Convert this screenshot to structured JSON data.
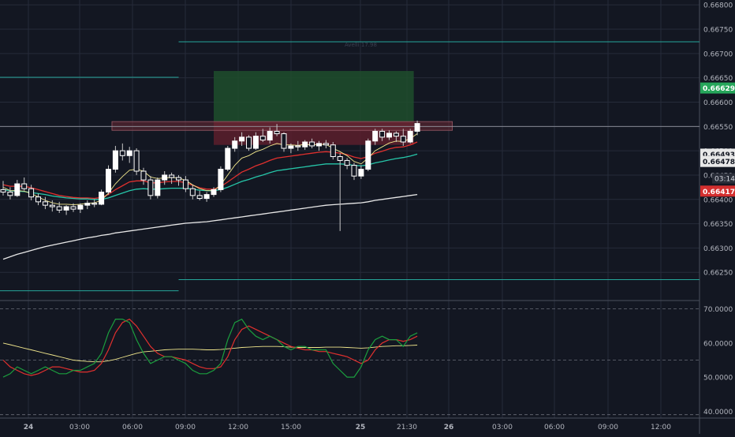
{
  "watermark": "Avelli 17.98",
  "colors": {
    "background": "#131722",
    "grid": "#262b3a",
    "candle_body": "#ffffff",
    "candle_wick": "#c8c8c8",
    "ema_fast": "#f0e68c",
    "ema_mid": "#e0302e",
    "ema_slow": "#26c6a9",
    "ema_long": "#e8e8e8",
    "level_line": "#26a69a",
    "profit_zone": "#1e4d2b",
    "loss_zone": "#5c1f2b",
    "label_green": "#26a65b",
    "label_red": "#d32f2f"
  },
  "chart_data": [
    {
      "type": "candlestick",
      "title": "",
      "x": [
        "24",
        "03:00",
        "06:00",
        "09:00",
        "12:00",
        "15:00",
        "25",
        "21:30",
        "26",
        "03:00",
        "06:00",
        "09:00",
        "12:00"
      ],
      "ylim": [
        0.66192,
        0.6681
      ],
      "y_ticks": [
        "0.66800",
        "0.66750",
        "0.66700",
        "0.66650",
        "0.66600",
        "0.66550",
        "0.66500",
        "0.66450",
        "0.66400",
        "0.66350",
        "0.66300",
        "0.66250"
      ],
      "price_labels": [
        {
          "value": 0.66629,
          "text": "0.66629",
          "kind": "green"
        },
        {
          "value": 0.66493,
          "text": "0.66493",
          "kind": "gray"
        },
        {
          "value": 0.66478,
          "text": "0.66478",
          "kind": "gray"
        },
        {
          "value": 0.66417,
          "text": "0.66417",
          "kind": "red"
        }
      ],
      "countdown": "03:14",
      "horizontal_levels": [
        {
          "value": 0.66724,
          "from": 25.0,
          "to": 200
        },
        {
          "value": 0.66651,
          "from": -6,
          "to": 25.0
        },
        {
          "value": 0.66235,
          "from": 25.0,
          "to": 200
        },
        {
          "value": 0.66212,
          "from": -6,
          "to": 25.0
        }
      ],
      "resistance_zone": {
        "from": 15.5,
        "to": 64.0,
        "high": 0.6656,
        "low": 0.66542
      },
      "position": {
        "from": 30.0,
        "to": 58.5,
        "entry": 0.6656,
        "target": 0.66664,
        "stop": 0.66512
      },
      "current_price_line": 0.6655,
      "ohlc": [
        [
          0.6642,
          0.66438,
          0.66408,
          0.66415
        ],
        [
          0.66415,
          0.66425,
          0.664,
          0.66408
        ],
        [
          0.66408,
          0.6644,
          0.66405,
          0.66432
        ],
        [
          0.66432,
          0.66445,
          0.66418,
          0.66422
        ],
        [
          0.66422,
          0.6643,
          0.66398,
          0.66405
        ],
        [
          0.66405,
          0.66412,
          0.66388,
          0.66395
        ],
        [
          0.66395,
          0.66405,
          0.6638,
          0.66388
        ],
        [
          0.66388,
          0.66398,
          0.66375,
          0.66385
        ],
        [
          0.66385,
          0.66395,
          0.66372,
          0.66378
        ],
        [
          0.66378,
          0.66388,
          0.66368,
          0.66385
        ],
        [
          0.66385,
          0.66392,
          0.66374,
          0.6638
        ],
        [
          0.6638,
          0.66392,
          0.66372,
          0.66388
        ],
        [
          0.66388,
          0.66398,
          0.6638,
          0.66392
        ],
        [
          0.66392,
          0.664,
          0.66384,
          0.6639
        ],
        [
          0.6639,
          0.6642,
          0.66388,
          0.66415
        ],
        [
          0.66415,
          0.6647,
          0.6641,
          0.66462
        ],
        [
          0.66462,
          0.6651,
          0.66455,
          0.665
        ],
        [
          0.665,
          0.66515,
          0.6648,
          0.6649
        ],
        [
          0.6649,
          0.66508,
          0.66475,
          0.665
        ],
        [
          0.665,
          0.66505,
          0.6645,
          0.66458
        ],
        [
          0.66458,
          0.66465,
          0.6643,
          0.6644
        ],
        [
          0.6644,
          0.66448,
          0.664,
          0.66408
        ],
        [
          0.66408,
          0.66445,
          0.66402,
          0.6644
        ],
        [
          0.6644,
          0.66458,
          0.6643,
          0.6645
        ],
        [
          0.6645,
          0.66455,
          0.66432,
          0.66445
        ],
        [
          0.66445,
          0.6645,
          0.66428,
          0.6644
        ],
        [
          0.6644,
          0.66448,
          0.66415,
          0.66422
        ],
        [
          0.66422,
          0.6643,
          0.664,
          0.66408
        ],
        [
          0.66408,
          0.66418,
          0.66398,
          0.66402
        ],
        [
          0.66402,
          0.66415,
          0.66395,
          0.6641
        ],
        [
          0.6641,
          0.66425,
          0.66405,
          0.6642
        ],
        [
          0.6642,
          0.66468,
          0.66415,
          0.66462
        ],
        [
          0.66462,
          0.6651,
          0.66458,
          0.66505
        ],
        [
          0.66505,
          0.66528,
          0.66498,
          0.6652
        ],
        [
          0.6652,
          0.66538,
          0.6651,
          0.66528
        ],
        [
          0.66528,
          0.66532,
          0.665,
          0.66505
        ],
        [
          0.66505,
          0.66538,
          0.66502,
          0.6653
        ],
        [
          0.6653,
          0.66545,
          0.66518,
          0.66522
        ],
        [
          0.66522,
          0.66548,
          0.66515,
          0.6654
        ],
        [
          0.6654,
          0.66555,
          0.6653,
          0.66535
        ],
        [
          0.66535,
          0.66538,
          0.66498,
          0.66505
        ],
        [
          0.66505,
          0.66515,
          0.66495,
          0.6651
        ],
        [
          0.6651,
          0.6652,
          0.665,
          0.66508
        ],
        [
          0.66508,
          0.66522,
          0.66502,
          0.66518
        ],
        [
          0.66518,
          0.66525,
          0.66505,
          0.6651
        ],
        [
          0.6651,
          0.6652,
          0.665,
          0.66515
        ],
        [
          0.66515,
          0.66522,
          0.66505,
          0.66512
        ],
        [
          0.66512,
          0.66518,
          0.66482,
          0.66488
        ],
        [
          0.66488,
          0.66495,
          0.66335,
          0.6648
        ],
        [
          0.6648,
          0.66485,
          0.66462,
          0.6647
        ],
        [
          0.6647,
          0.66475,
          0.6644,
          0.66448
        ],
        [
          0.66448,
          0.6647,
          0.66442,
          0.66462
        ],
        [
          0.66462,
          0.66525,
          0.66458,
          0.6652
        ],
        [
          0.6652,
          0.66545,
          0.66512,
          0.6654
        ],
        [
          0.6654,
          0.66545,
          0.6652,
          0.66528
        ],
        [
          0.66528,
          0.66542,
          0.66522,
          0.66536
        ],
        [
          0.66536,
          0.6654,
          0.66518,
          0.6653
        ],
        [
          0.6653,
          0.66545,
          0.6651,
          0.66518
        ],
        [
          0.66518,
          0.66545,
          0.66515,
          0.6654
        ],
        [
          0.6654,
          0.66562,
          0.66532,
          0.66556
        ]
      ],
      "ema_fast": [
        0.66425,
        0.66418,
        0.66418,
        0.66417,
        0.66412,
        0.66405,
        0.66398,
        0.66393,
        0.6639,
        0.6639,
        0.66389,
        0.6639,
        0.66392,
        0.66393,
        0.66398,
        0.66413,
        0.66432,
        0.66447,
        0.6646,
        0.66462,
        0.66458,
        0.66446,
        0.66443,
        0.66444,
        0.66445,
        0.66444,
        0.66439,
        0.6643,
        0.66422,
        0.66418,
        0.66418,
        0.6643,
        0.6645,
        0.6647,
        0.66485,
        0.6649,
        0.66498,
        0.66503,
        0.6651,
        0.66515,
        0.66512,
        0.66512,
        0.66511,
        0.66513,
        0.66512,
        0.66513,
        0.66513,
        0.66505,
        0.66498,
        0.6649,
        0.66478,
        0.66473,
        0.66485,
        0.665,
        0.66508,
        0.66516,
        0.6652,
        0.66519,
        0.66525,
        0.66535
      ],
      "ema_mid": [
        0.6643,
        0.66427,
        0.66427,
        0.66427,
        0.66424,
        0.6642,
        0.66416,
        0.66412,
        0.66408,
        0.66406,
        0.66404,
        0.66403,
        0.66403,
        0.66402,
        0.66404,
        0.6641,
        0.6642,
        0.66428,
        0.66436,
        0.66438,
        0.66438,
        0.66434,
        0.66434,
        0.66436,
        0.66437,
        0.66437,
        0.66434,
        0.66429,
        0.66424,
        0.66421,
        0.66421,
        0.66426,
        0.66436,
        0.66446,
        0.66456,
        0.66462,
        0.66469,
        0.66474,
        0.6648,
        0.66485,
        0.66487,
        0.66489,
        0.66491,
        0.66493,
        0.66495,
        0.66497,
        0.66498,
        0.66497,
        0.66495,
        0.66492,
        0.66487,
        0.66484,
        0.66488,
        0.66495,
        0.66499,
        0.66504,
        0.66507,
        0.66508,
        0.66512,
        0.66518
      ],
      "ema_slow": [
        0.6642,
        0.66418,
        0.66417,
        0.66416,
        0.66414,
        0.66412,
        0.6641,
        0.66407,
        0.66405,
        0.66403,
        0.66402,
        0.66401,
        0.66401,
        0.664,
        0.664,
        0.66403,
        0.66408,
        0.66413,
        0.66418,
        0.66421,
        0.66422,
        0.66421,
        0.66421,
        0.66422,
        0.66423,
        0.66423,
        0.66423,
        0.66421,
        0.66419,
        0.66418,
        0.66418,
        0.6642,
        0.66425,
        0.66431,
        0.66437,
        0.66441,
        0.66446,
        0.6645,
        0.66455,
        0.66459,
        0.66461,
        0.66463,
        0.66465,
        0.66467,
        0.66469,
        0.66471,
        0.66473,
        0.66473,
        0.66473,
        0.66472,
        0.6647,
        0.66469,
        0.66471,
        0.66475,
        0.66478,
        0.66481,
        0.66484,
        0.66486,
        0.66489,
        0.66493
      ],
      "ema_long": [
        0.66277,
        0.66282,
        0.66287,
        0.66291,
        0.66295,
        0.66299,
        0.66303,
        0.66306,
        0.66309,
        0.66312,
        0.66315,
        0.66318,
        0.66321,
        0.66323,
        0.66326,
        0.66328,
        0.66331,
        0.66333,
        0.66335,
        0.66337,
        0.66339,
        0.66341,
        0.66343,
        0.66345,
        0.66347,
        0.66349,
        0.66351,
        0.66352,
        0.66353,
        0.66354,
        0.66356,
        0.66358,
        0.6636,
        0.66362,
        0.66364,
        0.66366,
        0.66368,
        0.6637,
        0.66372,
        0.66374,
        0.66376,
        0.66378,
        0.6638,
        0.66382,
        0.66384,
        0.66386,
        0.66388,
        0.66389,
        0.6639,
        0.66391,
        0.66392,
        0.66393,
        0.66395,
        0.66398,
        0.664,
        0.66402,
        0.66404,
        0.66406,
        0.66408,
        0.6641
      ]
    },
    {
      "type": "line",
      "title": "",
      "ylim": [
        38,
        72
      ],
      "y_ticks": [
        "70.0000",
        "60.0000",
        "50.0000",
        "40.0000"
      ],
      "dashed_levels": [
        70,
        55,
        39
      ],
      "series": [
        {
          "color": "#f0e68c",
          "values": [
            60,
            59.5,
            59,
            58.5,
            58,
            57.5,
            57,
            56.5,
            56,
            55.5,
            55,
            54.8,
            54.6,
            54.5,
            54.5,
            54.8,
            55.2,
            55.8,
            56.4,
            57,
            57.4,
            57.6,
            57.8,
            58,
            58.1,
            58.2,
            58.2,
            58.2,
            58.1,
            58,
            58,
            58.1,
            58.3,
            58.5,
            58.7,
            58.8,
            58.9,
            59,
            59,
            59,
            58.9,
            58.8,
            58.7,
            58.7,
            58.7,
            58.7,
            58.8,
            58.8,
            58.8,
            58.7,
            58.6,
            58.5,
            58.6,
            58.8,
            59,
            59.1,
            59.2,
            59.2,
            59.3,
            59.4
          ]
        },
        {
          "color": "#e0302e",
          "values": [
            55,
            53,
            52,
            51,
            50.5,
            51,
            52,
            53,
            53,
            52.5,
            52,
            51.5,
            51.5,
            52,
            54,
            58,
            63,
            66,
            67,
            65,
            62,
            59,
            57,
            56,
            56,
            55.5,
            55,
            54,
            53,
            52.5,
            52.5,
            53,
            56,
            61,
            64,
            65,
            64,
            63,
            62,
            61,
            60,
            59,
            58.5,
            58,
            58,
            57.5,
            57.5,
            57,
            56.5,
            56,
            55,
            54,
            55,
            58,
            60,
            61,
            61,
            60.5,
            61,
            62
          ]
        },
        {
          "color": "#1b9e3e",
          "values": [
            50,
            51,
            53,
            52,
            51,
            52,
            53,
            52,
            51,
            51,
            52,
            52,
            53,
            54,
            57,
            63,
            67,
            67,
            66,
            61,
            57,
            54,
            55,
            56,
            56,
            55,
            54,
            52,
            51,
            51,
            52,
            54,
            61,
            66,
            67,
            64,
            62,
            61,
            62,
            61,
            59,
            58,
            59,
            59,
            58,
            58,
            58,
            54,
            52,
            50,
            50,
            53,
            58,
            61,
            62,
            61,
            61,
            59,
            62,
            63
          ]
        }
      ]
    }
  ]
}
